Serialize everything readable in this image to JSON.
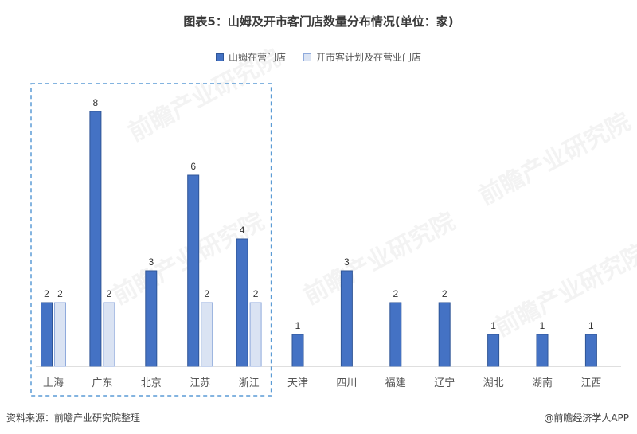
{
  "title": "图表5：山姆及开市客门店数量分布情况(单位：家)",
  "source": "资料来源：前瞻产业研究院整理",
  "brand": "@前瞻经济学人APP",
  "watermark": "前瞻产业研究院",
  "colors": {
    "series1_fill": "#4472c4",
    "series1_stroke": "#2f5597",
    "series2_fill": "#dae3f3",
    "series2_stroke": "#8faadc",
    "highlight_box": "#5b9bd5",
    "axis": "#bfbfbf"
  },
  "chart_data": {
    "type": "bar",
    "title": "图表5：山姆及开市客门店数量分布情况(单位：家)",
    "categories": [
      "上海",
      "广东",
      "北京",
      "江苏",
      "浙江",
      "天津",
      "四川",
      "福建",
      "辽宁",
      "湖北",
      "湖南",
      "江西"
    ],
    "series": [
      {
        "name": "山姆在营门店",
        "values": [
          2,
          8,
          3,
          6,
          4,
          1,
          3,
          2,
          2,
          1,
          1,
          1
        ]
      },
      {
        "name": "开市客计划及在营业门店",
        "values": [
          2,
          2,
          null,
          2,
          2,
          null,
          null,
          null,
          null,
          null,
          null,
          null
        ]
      }
    ],
    "ylim": [
      0,
      8
    ],
    "grid": false,
    "legend_position": "top-center",
    "highlighted_categories": [
      "上海",
      "广东",
      "北京",
      "江苏",
      "浙江"
    ]
  }
}
